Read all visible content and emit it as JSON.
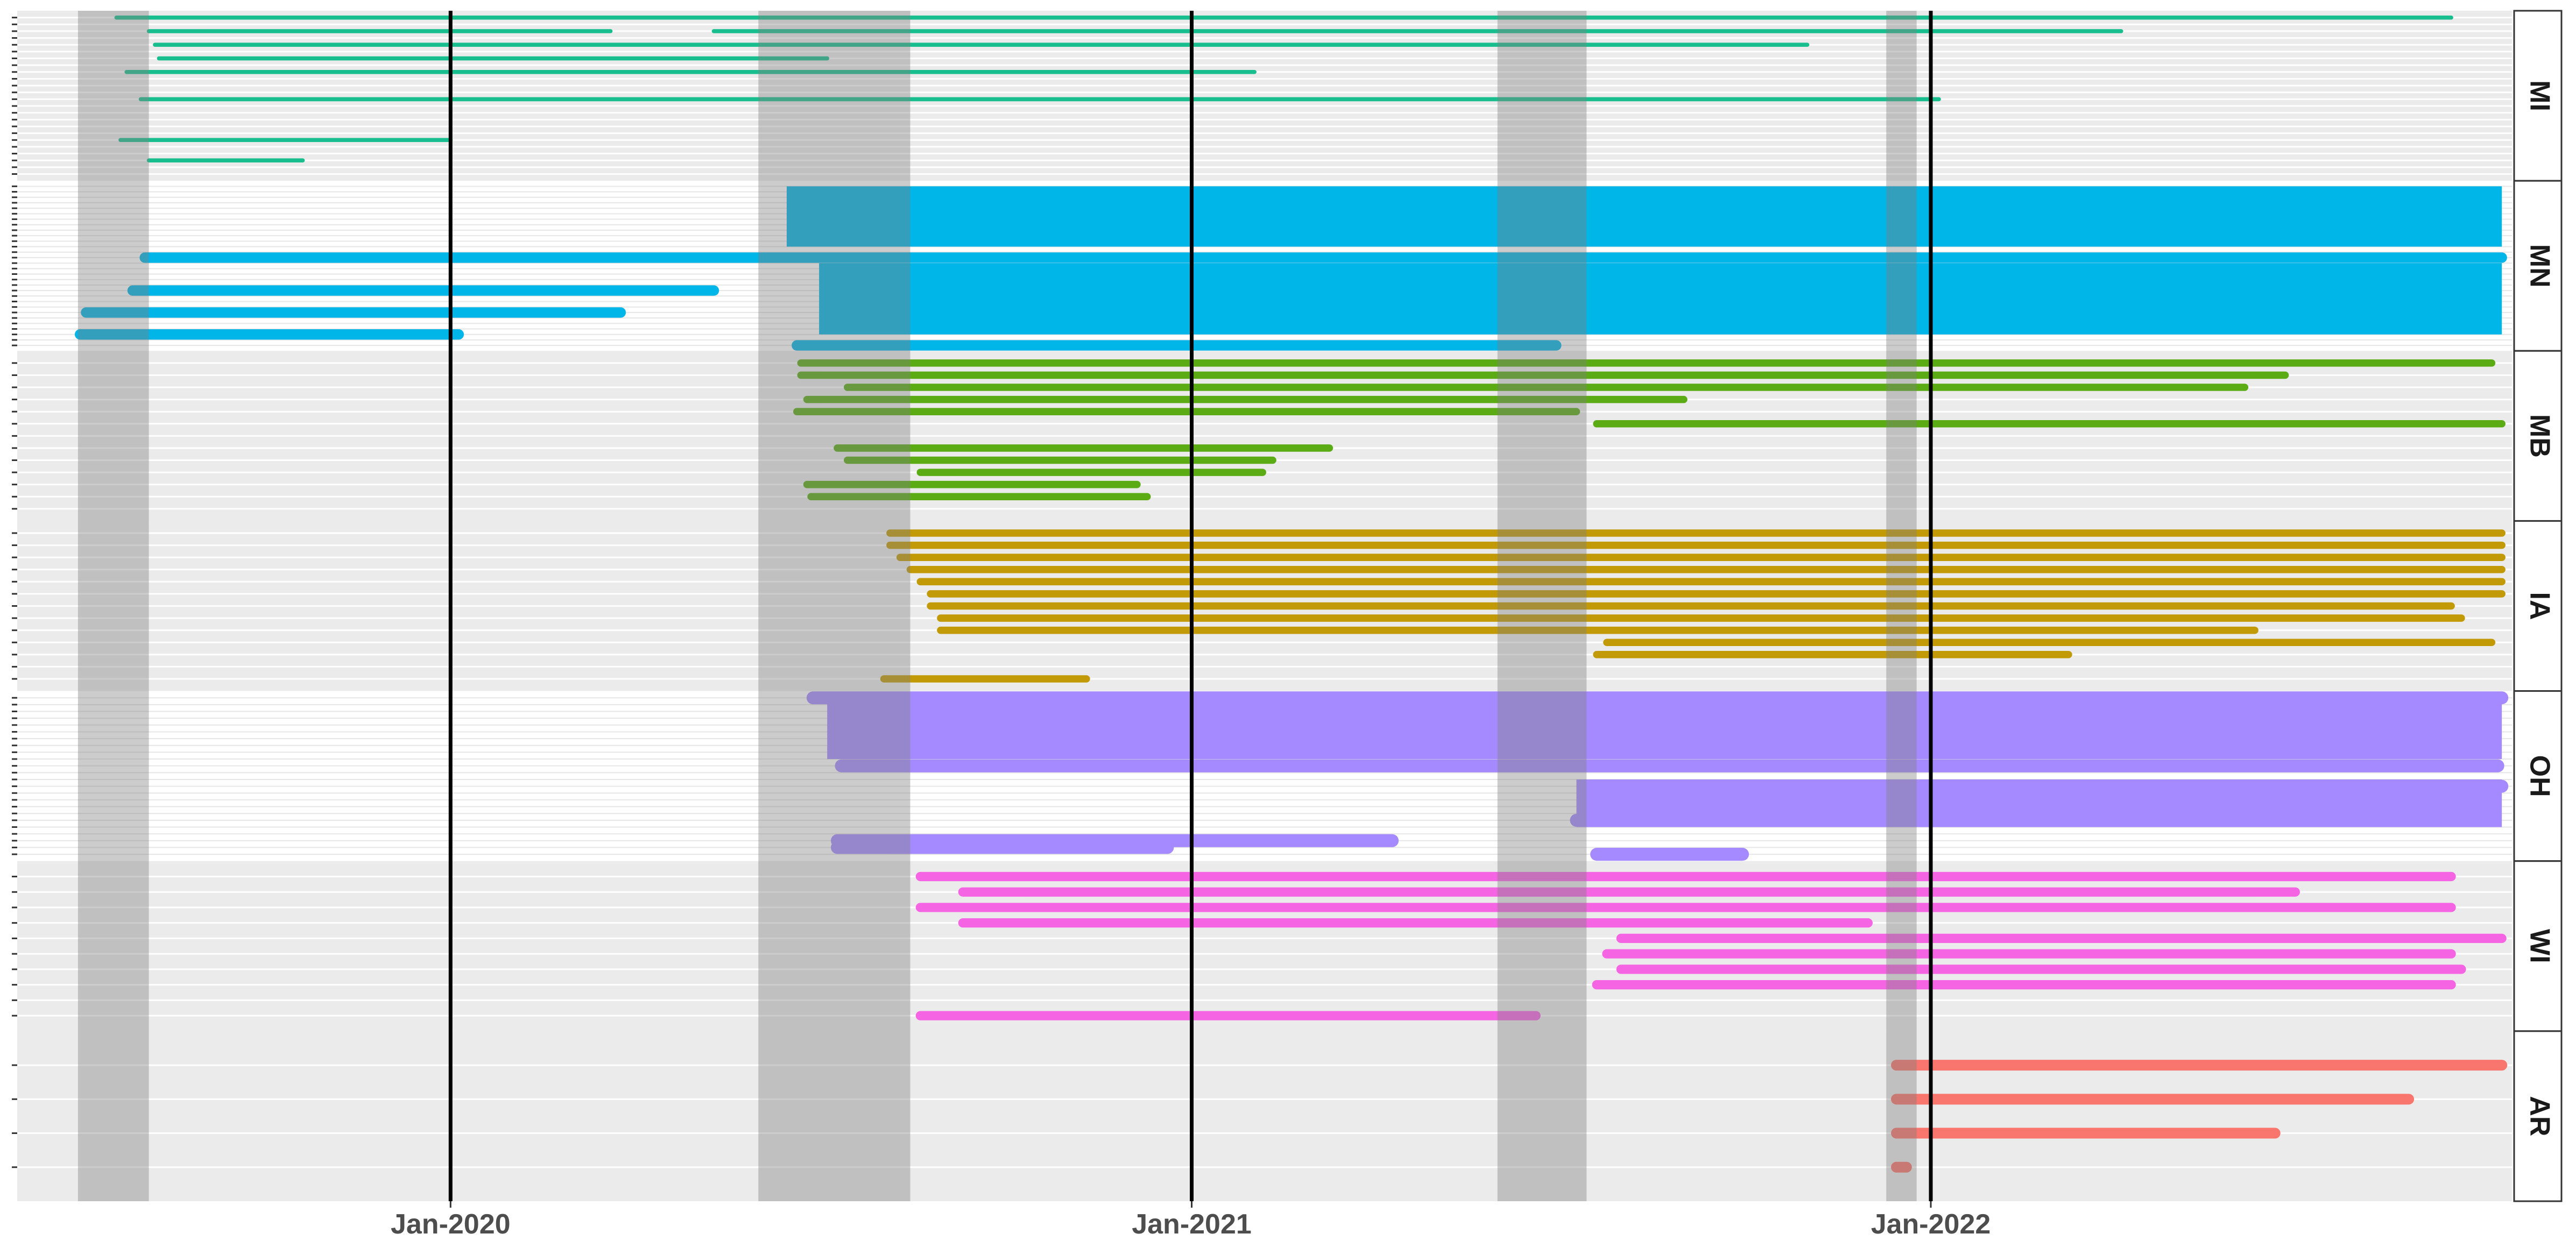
{
  "chart_data": {
    "type": "timeline",
    "x_ticks": [
      "Jan-2020",
      "Jan-2021",
      "Jan-2022"
    ],
    "x_tick_dates": [
      "2020-01-01",
      "2021-01-01",
      "2022-01-01"
    ],
    "xlim": [
      "2019-06-01",
      "2022-10-15"
    ],
    "shaded_periods": [
      [
        "2019-07-01",
        "2019-08-05"
      ],
      [
        "2020-06-01",
        "2020-08-15"
      ],
      [
        "2021-06-01",
        "2021-07-15"
      ],
      [
        "2021-12-10",
        "2021-12-25"
      ]
    ],
    "vertical_lines": [
      "2020-01-01",
      "2021-01-01",
      "2022-01-01"
    ],
    "grid": true,
    "panels": [
      {
        "label": "MI",
        "color": "#19BE8E",
        "rows": 24,
        "dense": false,
        "bars": [
          {
            "row": 0,
            "start": "2019-07-20",
            "end": "2022-09-15"
          },
          {
            "row": 2,
            "start": "2019-08-05",
            "end": "2020-03-20"
          },
          {
            "row": 2,
            "start": "2020-05-10",
            "end": "2022-04-05"
          },
          {
            "row": 4,
            "start": "2019-08-08",
            "end": "2021-11-01"
          },
          {
            "row": 6,
            "start": "2019-08-10",
            "end": "2020-07-05"
          },
          {
            "row": 8,
            "start": "2019-07-25",
            "end": "2021-02-01"
          },
          {
            "row": 12,
            "start": "2019-08-01",
            "end": "2022-01-05"
          },
          {
            "row": 18,
            "start": "2019-07-22",
            "end": "2020-01-01"
          },
          {
            "row": 21,
            "start": "2019-08-05",
            "end": "2019-10-20"
          }
        ]
      },
      {
        "label": "MN",
        "color": "#00B5E7",
        "rows": 30,
        "dense": true,
        "bars": [
          {
            "row": 13,
            "start": "2019-08-03",
            "end": "2022-10-10"
          },
          {
            "row": 19,
            "start": "2019-07-28",
            "end": "2020-05-10"
          },
          {
            "row": 23,
            "start": "2019-07-05",
            "end": "2020-03-25"
          },
          {
            "row": 27,
            "start": "2019-07-02",
            "end": "2020-01-05"
          },
          {
            "row": 29,
            "start": "2020-06-20",
            "end": "2021-06-30"
          }
        ]
      },
      {
        "label": "MB",
        "color": "#5BAB14",
        "rows": 13,
        "dense": false,
        "bars": [
          {
            "row": 0,
            "start": "2020-06-22",
            "end": "2022-10-05"
          },
          {
            "row": 1,
            "start": "2020-06-22",
            "end": "2022-06-25"
          },
          {
            "row": 2,
            "start": "2020-07-15",
            "end": "2022-06-05"
          },
          {
            "row": 3,
            "start": "2020-06-25",
            "end": "2021-09-01"
          },
          {
            "row": 4,
            "start": "2020-06-20",
            "end": "2021-07-10"
          },
          {
            "row": 5,
            "start": "2021-07-20",
            "end": "2022-10-10"
          },
          {
            "row": 7,
            "start": "2020-07-10",
            "end": "2021-03-10"
          },
          {
            "row": 8,
            "start": "2020-07-15",
            "end": "2021-02-10"
          },
          {
            "row": 9,
            "start": "2020-08-20",
            "end": "2021-02-05"
          },
          {
            "row": 10,
            "start": "2020-06-25",
            "end": "2020-12-05"
          },
          {
            "row": 11,
            "start": "2020-06-27",
            "end": "2020-12-10"
          }
        ]
      },
      {
        "label": "IA",
        "color": "#C29A07",
        "rows": 13,
        "dense": false,
        "bars": [
          {
            "row": 0,
            "start": "2020-08-05",
            "end": "2022-10-10"
          },
          {
            "row": 1,
            "start": "2020-08-05",
            "end": "2022-10-10"
          },
          {
            "row": 2,
            "start": "2020-08-10",
            "end": "2022-10-10"
          },
          {
            "row": 3,
            "start": "2020-08-15",
            "end": "2022-10-10"
          },
          {
            "row": 4,
            "start": "2020-08-20",
            "end": "2022-10-10"
          },
          {
            "row": 5,
            "start": "2020-08-25",
            "end": "2022-10-10"
          },
          {
            "row": 6,
            "start": "2020-08-25",
            "end": "2022-09-15"
          },
          {
            "row": 7,
            "start": "2020-08-30",
            "end": "2022-09-20"
          },
          {
            "row": 8,
            "start": "2020-08-30",
            "end": "2022-06-10"
          },
          {
            "row": 9,
            "start": "2021-07-25",
            "end": "2022-10-05"
          },
          {
            "row": 10,
            "start": "2021-07-20",
            "end": "2022-03-10"
          },
          {
            "row": 12,
            "start": "2020-08-02",
            "end": "2020-11-10"
          }
        ]
      },
      {
        "label": "OH",
        "color": "#A58AFF",
        "rows": 24,
        "dense": true,
        "bars": [
          {
            "row": 0,
            "start": "2020-06-28",
            "end": "2022-10-10"
          },
          {
            "row": 4,
            "start": "2020-07-10",
            "end": "2022-09-15"
          },
          {
            "row": 10,
            "start": "2020-07-12",
            "end": "2022-10-08"
          },
          {
            "row": 13,
            "start": "2021-07-15",
            "end": "2022-10-10"
          },
          {
            "row": 18,
            "start": "2021-07-10",
            "end": "2022-06-20"
          },
          {
            "row": 21,
            "start": "2020-07-10",
            "end": "2021-04-10"
          },
          {
            "row": 22,
            "start": "2020-07-10",
            "end": "2020-12-20"
          },
          {
            "row": 23,
            "start": "2021-07-20",
            "end": "2021-09-30"
          }
        ]
      },
      {
        "label": "WI",
        "color": "#F564E3",
        "rows": 10,
        "dense": false,
        "bars": [
          {
            "row": 0,
            "start": "2020-08-20",
            "end": "2022-09-15"
          },
          {
            "row": 1,
            "start": "2020-09-10",
            "end": "2022-06-30"
          },
          {
            "row": 2,
            "start": "2020-08-20",
            "end": "2022-09-15"
          },
          {
            "row": 3,
            "start": "2020-09-10",
            "end": "2021-12-01"
          },
          {
            "row": 4,
            "start": "2021-08-01",
            "end": "2022-10-10"
          },
          {
            "row": 5,
            "start": "2021-07-25",
            "end": "2022-09-15"
          },
          {
            "row": 6,
            "start": "2021-08-01",
            "end": "2022-09-20"
          },
          {
            "row": 7,
            "start": "2021-07-20",
            "end": "2022-09-15"
          },
          {
            "row": 9,
            "start": "2020-08-20",
            "end": "2021-06-20"
          }
        ]
      },
      {
        "label": "AR",
        "color": "#F8766D",
        "rows": 4,
        "dense": false,
        "bars": [
          {
            "row": 0,
            "start": "2021-12-15",
            "end": "2022-10-10"
          },
          {
            "row": 1,
            "start": "2021-12-15",
            "end": "2022-08-25"
          },
          {
            "row": 2,
            "start": "2021-12-15",
            "end": "2022-06-20"
          },
          {
            "row": 3,
            "start": "2021-12-15",
            "end": "2021-12-20"
          }
        ]
      }
    ]
  }
}
